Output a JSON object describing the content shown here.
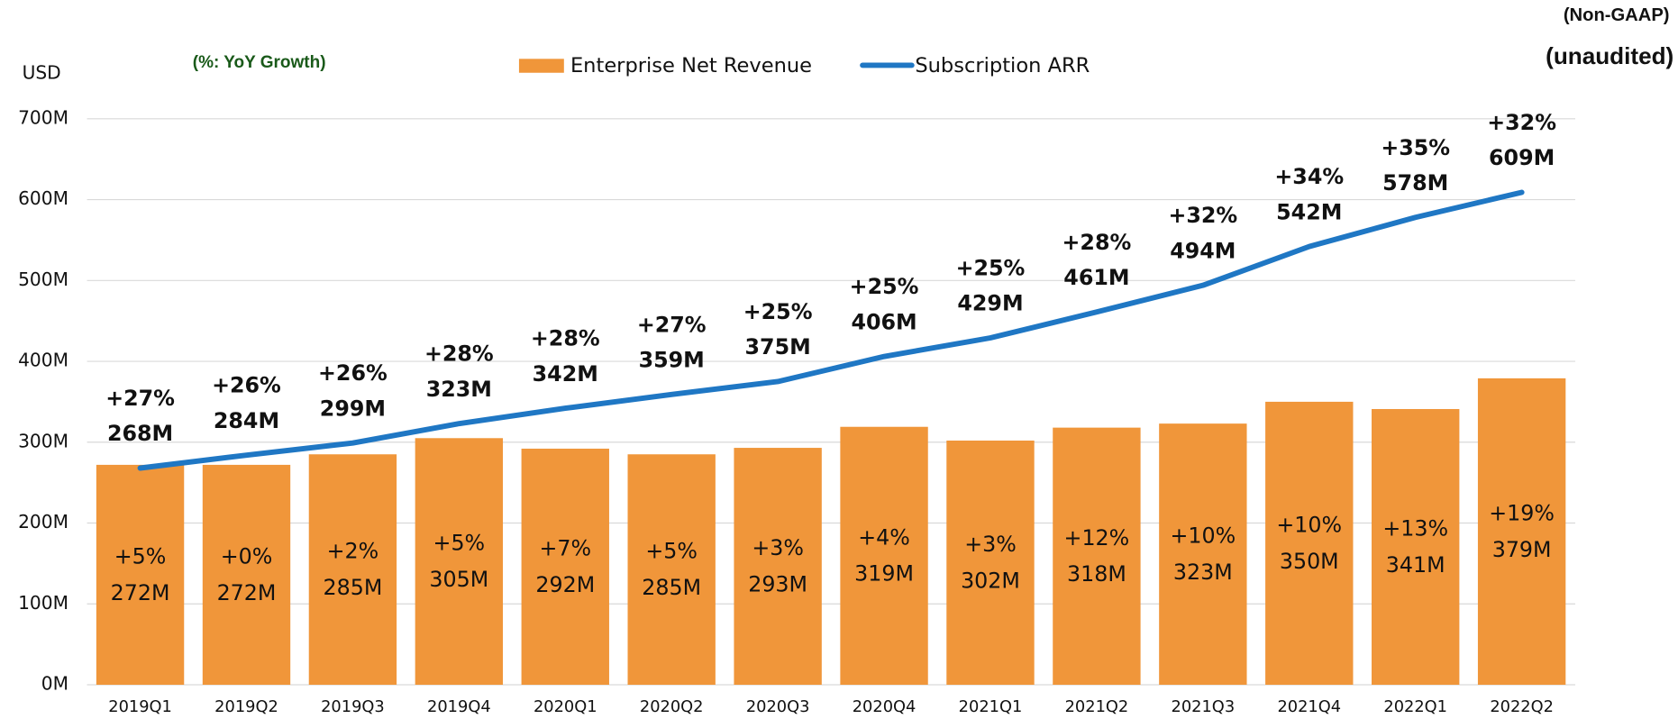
{
  "chart_data": {
    "type": "bar_line",
    "unit_label": "USD",
    "note": "(%: YoY Growth)",
    "corner_labels": [
      "(Non-GAAP)",
      "(unaudited)"
    ],
    "categories": [
      "2019Q1",
      "2019Q2",
      "2019Q3",
      "2019Q4",
      "2020Q1",
      "2020Q2",
      "2020Q3",
      "2020Q4",
      "2021Q1",
      "2021Q2",
      "2021Q3",
      "2021Q4",
      "2022Q1",
      "2022Q2"
    ],
    "series": [
      {
        "name": "Enterprise Net Revenue",
        "color": "#f0963a",
        "kind": "bar",
        "values": [
          272,
          272,
          285,
          305,
          292,
          285,
          293,
          319,
          302,
          318,
          323,
          350,
          341,
          379
        ],
        "value_labels": [
          "272M",
          "272M",
          "285M",
          "305M",
          "292M",
          "285M",
          "293M",
          "319M",
          "302M",
          "318M",
          "323M",
          "350M",
          "341M",
          "379M"
        ],
        "growth_labels": [
          "+5%",
          "+0%",
          "+2%",
          "+5%",
          "+7%",
          "+5%",
          "+3%",
          "+4%",
          "+3%",
          "+12%",
          "+10%",
          "+10%",
          "+13%",
          "+19%"
        ]
      },
      {
        "name": "Subscription ARR",
        "color": "#1f77c4",
        "kind": "line",
        "values": [
          268,
          284,
          299,
          323,
          342,
          359,
          375,
          406,
          429,
          461,
          494,
          542,
          578,
          609
        ],
        "value_labels": [
          "268M",
          "284M",
          "299M",
          "323M",
          "342M",
          "359M",
          "375M",
          "406M",
          "429M",
          "461M",
          "494M",
          "542M",
          "578M",
          "609M"
        ],
        "growth_labels": [
          "+27%",
          "+26%",
          "+26%",
          "+28%",
          "+28%",
          "+27%",
          "+25%",
          "+25%",
          "+25%",
          "+28%",
          "+32%",
          "+34%",
          "+35%",
          "+32%"
        ]
      }
    ],
    "ylim": [
      0,
      700
    ],
    "yticks": [
      {
        "value": 0,
        "label": "0M"
      },
      {
        "value": 100,
        "label": "100M"
      },
      {
        "value": 200,
        "label": "200M"
      },
      {
        "value": 300,
        "label": "300M"
      },
      {
        "value": 400,
        "label": "400M"
      },
      {
        "value": 500,
        "label": "500M"
      },
      {
        "value": 600,
        "label": "600M"
      },
      {
        "value": 700,
        "label": "700M"
      }
    ],
    "grid": true
  }
}
